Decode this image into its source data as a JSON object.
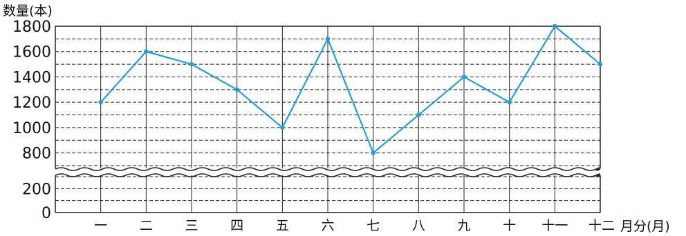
{
  "chart_data": {
    "type": "line",
    "ylabel": "数量(本)",
    "xlabel": "月分(月)",
    "categories": [
      "一",
      "二",
      "三",
      "四",
      "五",
      "六",
      "七",
      "八",
      "九",
      "十",
      "十一",
      "十二"
    ],
    "values": [
      1200,
      1600,
      1500,
      1300,
      1000,
      1700,
      800,
      1100,
      1400,
      1200,
      1800,
      1500
    ],
    "y_ticks_upper": [
      "800",
      "1000",
      "1200",
      "1400",
      "1600",
      "1800"
    ],
    "y_ticks_lower": [
      "0",
      "200"
    ],
    "ylim_upper": [
      700,
      1800
    ],
    "ylim_lower": [
      0,
      300
    ],
    "axis_break": true,
    "grid": true,
    "colors": {
      "line": "#1d9fe0",
      "grid": "#222222"
    }
  }
}
